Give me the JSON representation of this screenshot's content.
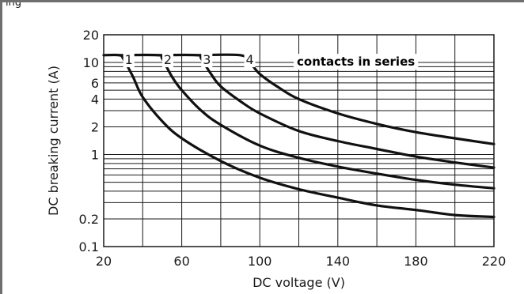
{
  "window": {
    "title": "ing"
  },
  "chart_data": {
    "type": "line",
    "xlabel": "DC voltage (V)",
    "ylabel": "DC breaking current (A)",
    "xlim": [
      20,
      220
    ],
    "ylim": [
      0.1,
      20
    ],
    "yscale": "log",
    "grid": true,
    "x_ticks": [
      20,
      60,
      100,
      140,
      180,
      220
    ],
    "y_ticks": [
      0.1,
      0.2,
      1,
      2,
      4,
      6,
      10,
      20
    ],
    "annotation": "contacts in series",
    "series": [
      {
        "name": "1",
        "x": [
          20,
          28,
          30,
          35,
          40,
          50,
          60,
          80,
          100,
          120,
          140,
          160,
          180,
          200,
          220
        ],
        "y": [
          12,
          12,
          11,
          7,
          4.2,
          2.3,
          1.5,
          0.85,
          0.56,
          0.42,
          0.34,
          0.28,
          0.25,
          0.22,
          0.21
        ]
      },
      {
        "name": "2",
        "x": [
          28,
          48,
          50,
          55,
          60,
          70,
          80,
          100,
          120,
          140,
          160,
          180,
          200,
          220
        ],
        "y": [
          12,
          12,
          11,
          7,
          5,
          3,
          2.1,
          1.25,
          0.92,
          0.74,
          0.62,
          0.53,
          0.47,
          0.43
        ]
      },
      {
        "name": "3",
        "x": [
          48,
          68,
          70,
          75,
          80,
          90,
          100,
          120,
          140,
          160,
          180,
          200,
          220
        ],
        "y": [
          12,
          12,
          11,
          7.5,
          5.5,
          3.8,
          2.8,
          1.8,
          1.4,
          1.15,
          0.95,
          0.82,
          0.72
        ]
      },
      {
        "name": "4",
        "x": [
          68,
          90,
          95,
          100,
          110,
          120,
          140,
          160,
          180,
          200,
          220
        ],
        "y": [
          12,
          12,
          10,
          7.5,
          5.3,
          4,
          2.8,
          2.15,
          1.75,
          1.5,
          1.3
        ]
      }
    ]
  }
}
